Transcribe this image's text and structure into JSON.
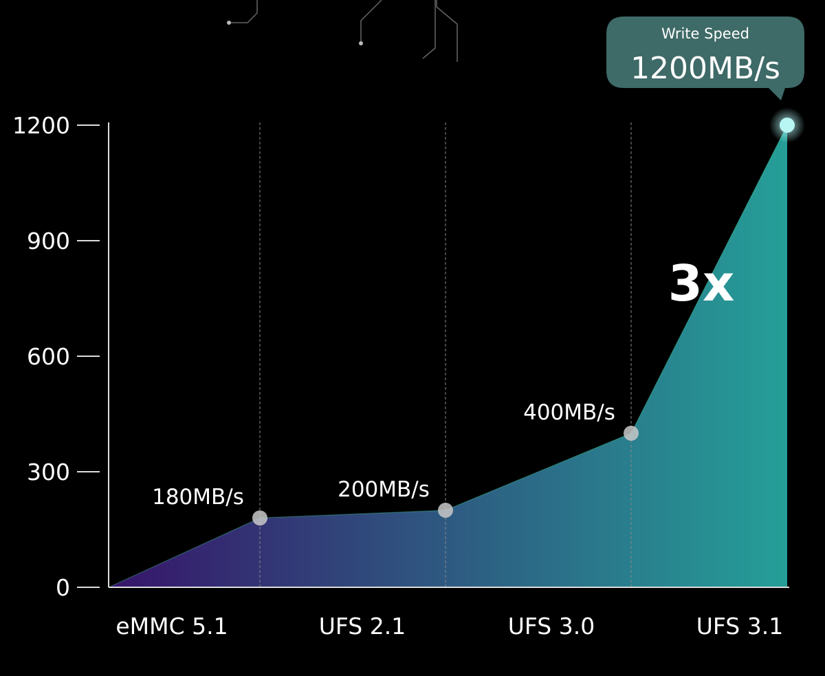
{
  "chart_data": {
    "type": "area",
    "title": "",
    "xlabel": "",
    "ylabel": "",
    "categories": [
      "eMMC 5.1",
      "UFS 2.1",
      "UFS 3.0",
      "UFS 3.1"
    ],
    "series": [
      {
        "values": [
          180,
          200,
          400,
          1200
        ],
        "data_labels": [
          "180MB/s",
          "200MB/s",
          "400MB/s",
          ""
        ]
      }
    ],
    "ylim": [
      0,
      1200
    ],
    "yticks": [
      "0",
      "300",
      "600",
      "900",
      "1200"
    ],
    "grid": "vertical dashed lines at points",
    "legend": "none",
    "annotations": {
      "tooltip_title": "Write Speed",
      "tooltip_value": "1200MB/s",
      "multiplier": "3x"
    },
    "colors": {
      "fill_start": "#3a1670",
      "fill_end": "#27a7a0",
      "tooltip": "#3e6a67",
      "highlight_point": "#b8f6f4",
      "point": "#c8c8c8"
    }
  }
}
